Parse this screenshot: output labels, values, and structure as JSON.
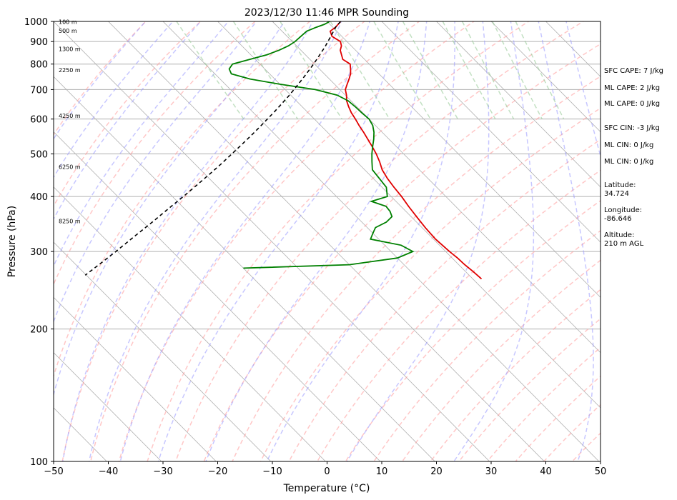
{
  "chart_data": {
    "type": "line",
    "subtype": "skew-t log-p sounding",
    "title": "2023/12/30 11:46 MPR Sounding",
    "xlabel": "Temperature (°C)",
    "ylabel": "Pressure (hPa)",
    "xlim": [
      -50,
      50
    ],
    "ylim": [
      1000,
      100
    ],
    "y_scale": "log",
    "x_ticks": [
      "−50",
      "−40",
      "−30",
      "−20",
      "−10",
      "0",
      "10",
      "20",
      "30",
      "40",
      "50"
    ],
    "y_ticks": [
      "100",
      "200",
      "300",
      "400",
      "500",
      "600",
      "700",
      "800",
      "900",
      "1000"
    ],
    "grid": true,
    "colors": {
      "temperature": "#e00000",
      "dewpoint": "#008000",
      "parcel": "#000000",
      "dry_adiabat": "#ff9999",
      "moist_adiabat": "#9999ff",
      "mixing_ratio": "#99cc99",
      "isotherm": "#b0b0b0"
    },
    "series": [
      {
        "role": "temperature",
        "pressure": [
          1000,
          985,
          970,
          950,
          925,
          900,
          880,
          860,
          840,
          820,
          800,
          780,
          760,
          740,
          720,
          700,
          680,
          660,
          640,
          620,
          600,
          580,
          560,
          540,
          520,
          500,
          480,
          460,
          440,
          420,
          400,
          380,
          360,
          340,
          320,
          300,
          290,
          280,
          270,
          260
        ],
        "values": [
          2.5,
          1.5,
          0.5,
          -1.2,
          -1.8,
          -1.2,
          -1.8,
          -2.8,
          -3.4,
          -4.0,
          -3.5,
          -4.3,
          -5.2,
          -6.4,
          -7.7,
          -9.0,
          -9.8,
          -10.8,
          -11.5,
          -12.1,
          -12.5,
          -13.0,
          -13.4,
          -13.9,
          -14.4,
          -15.0,
          -15.8,
          -16.8,
          -17.4,
          -17.8,
          -18.1,
          -18.6,
          -19.0,
          -19.4,
          -19.6,
          -19.3,
          -19.0,
          -18.9,
          -18.6,
          -18.4
        ]
      },
      {
        "role": "dewpoint",
        "pressure": [
          1000,
          985,
          970,
          950,
          925,
          900,
          880,
          860,
          840,
          820,
          800,
          780,
          760,
          740,
          720,
          700,
          680,
          660,
          640,
          620,
          600,
          580,
          560,
          540,
          520,
          500,
          480,
          460,
          440,
          420,
          400,
          390,
          380,
          370,
          360,
          350,
          340,
          330,
          320,
          310,
          300,
          290,
          280,
          275
        ],
        "values": [
          0.5,
          -1.0,
          -3.0,
          -5.5,
          -7.5,
          -9.5,
          -11.5,
          -14.0,
          -17.0,
          -21.0,
          -25.0,
          -26.5,
          -27.0,
          -24.5,
          -20.0,
          -14.5,
          -11.5,
          -10.5,
          -10.3,
          -10.2,
          -10.0,
          -10.5,
          -11.5,
          -12.8,
          -14.3,
          -15.8,
          -17.2,
          -18.6,
          -18.9,
          -19.2,
          -20.7,
          -24.5,
          -22.7,
          -22.9,
          -23.5,
          -25.5,
          -28.5,
          -30.0,
          -31.5,
          -27.0,
          -26.0,
          -30.0,
          -40.0,
          -60.0
        ]
      },
      {
        "role": "parcel",
        "pressure": [
          1000,
          975,
          950,
          925,
          900,
          875,
          850,
          825,
          800,
          775,
          750,
          725,
          700,
          675,
          650,
          625,
          600,
          575,
          550,
          525,
          500,
          475,
          450,
          425,
          400,
          375,
          350,
          325,
          300,
          290,
          280,
          270,
          265
        ],
        "values": [
          2.5,
          0.8,
          -0.6,
          -2.0,
          -3.5,
          -5.0,
          -6.7,
          -8.4,
          -10.2,
          -12.1,
          -14.1,
          -16.2,
          -18.4,
          -20.7,
          -23.2,
          -25.8,
          -28.6,
          -31.5,
          -34.6,
          -37.9,
          -41.4,
          -45.1,
          -49.1,
          -53.4,
          -58.0,
          -63.0,
          -68.3,
          -74.1,
          -80.3,
          -83.0,
          -85.8,
          -88.7,
          -90.2
        ]
      }
    ],
    "height_labels": [
      {
        "label": "100 m",
        "pressure": 999
      },
      {
        "label": "500 m",
        "pressure": 952
      },
      {
        "label": "1300 m",
        "pressure": 866
      },
      {
        "label": "2250 m",
        "pressure": 776
      },
      {
        "label": "4250 m",
        "pressure": 610
      },
      {
        "label": "6250 m",
        "pressure": 467
      },
      {
        "label": "8250 m",
        "pressure": 352
      }
    ],
    "side_text": {
      "sfc_cape": "SFC CAPE: 7 J/kg",
      "ml_cape_1": "ML CAPE: 2 J/kg",
      "ml_cape_2": "ML CAPE: 0 J/kg",
      "sfc_cin": "SFC CIN: -3 J/kg",
      "ml_cin_1": "ML CIN: 0 J/kg",
      "ml_cin_2": "ML CIN: 0 J/kg",
      "lat_label": "Latitude:",
      "lat_value": "34.724",
      "lon_label": "Longitude:",
      "lon_value": "-86.646",
      "alt_label": "Altitude:",
      "alt_value": "210 m AGL"
    }
  }
}
